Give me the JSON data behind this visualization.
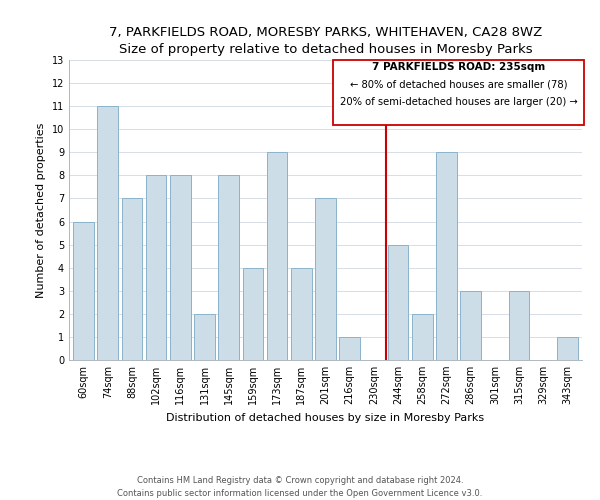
{
  "title": "7, PARKFIELDS ROAD, MORESBY PARKS, WHITEHAVEN, CA28 8WZ",
  "subtitle": "Size of property relative to detached houses in Moresby Parks",
  "xlabel": "Distribution of detached houses by size in Moresby Parks",
  "ylabel": "Number of detached properties",
  "bar_labels": [
    "60sqm",
    "74sqm",
    "88sqm",
    "102sqm",
    "116sqm",
    "131sqm",
    "145sqm",
    "159sqm",
    "173sqm",
    "187sqm",
    "201sqm",
    "216sqm",
    "230sqm",
    "244sqm",
    "258sqm",
    "272sqm",
    "286sqm",
    "301sqm",
    "315sqm",
    "329sqm",
    "343sqm"
  ],
  "bar_values": [
    6,
    11,
    7,
    8,
    8,
    2,
    8,
    4,
    9,
    4,
    7,
    1,
    0,
    5,
    2,
    9,
    3,
    0,
    3,
    0,
    1
  ],
  "bar_color": "#ccdde8",
  "bar_edge_color": "#8ab4cc",
  "marker_color": "#cc0000",
  "annotation_line1": "7 PARKFIELDS ROAD: 235sqm",
  "annotation_line2": "← 80% of detached houses are smaller (78)",
  "annotation_line3": "20% of semi-detached houses are larger (20) →",
  "footer1": "Contains HM Land Registry data © Crown copyright and database right 2024.",
  "footer2": "Contains public sector information licensed under the Open Government Licence v3.0.",
  "ylim": [
    0,
    13
  ],
  "yticks": [
    0,
    1,
    2,
    3,
    4,
    5,
    6,
    7,
    8,
    9,
    10,
    11,
    12,
    13
  ],
  "title_fontsize": 9.5,
  "axis_label_fontsize": 8,
  "tick_fontsize": 7,
  "footer_fontsize": 6,
  "annot_fontsize": 7.5
}
